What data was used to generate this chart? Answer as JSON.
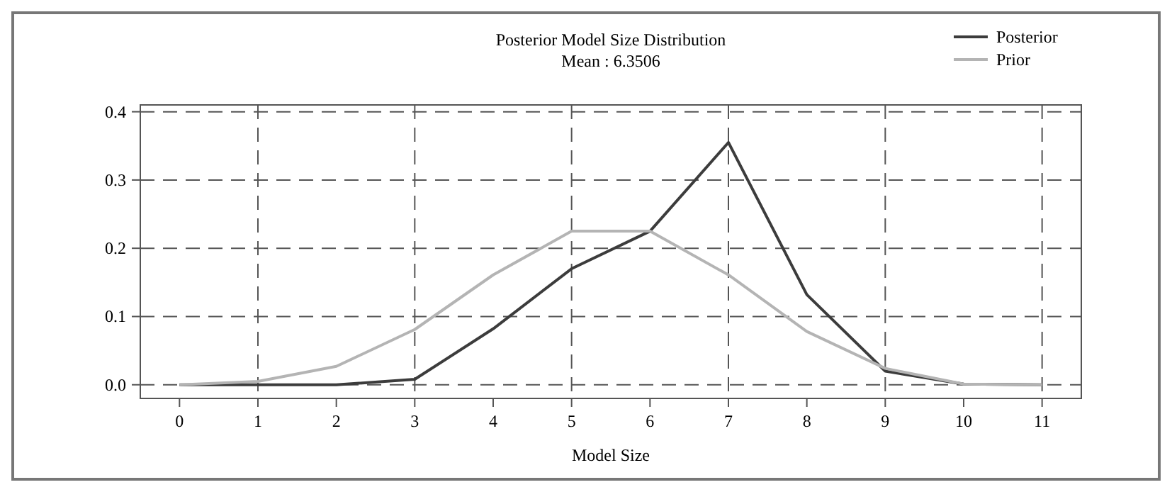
{
  "chart_data": {
    "type": "line",
    "title": "Posterior Model Size Distribution",
    "subtitle": "Mean : 6.3506",
    "xlabel": "Model Size",
    "x": [
      0,
      1,
      2,
      3,
      4,
      5,
      6,
      7,
      8,
      9,
      10,
      11
    ],
    "series": [
      {
        "name": "Posterior",
        "color": "#3c3c3c",
        "values": [
          0,
          0,
          0,
          0.008,
          0.082,
          0.17,
          0.225,
          0.355,
          0.132,
          0.02,
          0.001,
          0
        ]
      },
      {
        "name": "Prior",
        "color": "#b4b4b4",
        "values": [
          0,
          0.005,
          0.027,
          0.081,
          0.161,
          0.225,
          0.225,
          0.161,
          0.078,
          0.024,
          0.001,
          0
        ]
      }
    ],
    "xlim": [
      -0.5,
      11.5
    ],
    "xticks": [
      0,
      1,
      2,
      3,
      4,
      5,
      6,
      7,
      8,
      9,
      10,
      11
    ],
    "ylim": [
      -0.02,
      0.41
    ],
    "yticks": [
      {
        "value": 0,
        "label": "0.0"
      },
      0.1,
      0.2,
      0.3,
      0.4
    ],
    "grid": true,
    "legend": "top right",
    "marker": "none",
    "line_style": "solid"
  }
}
